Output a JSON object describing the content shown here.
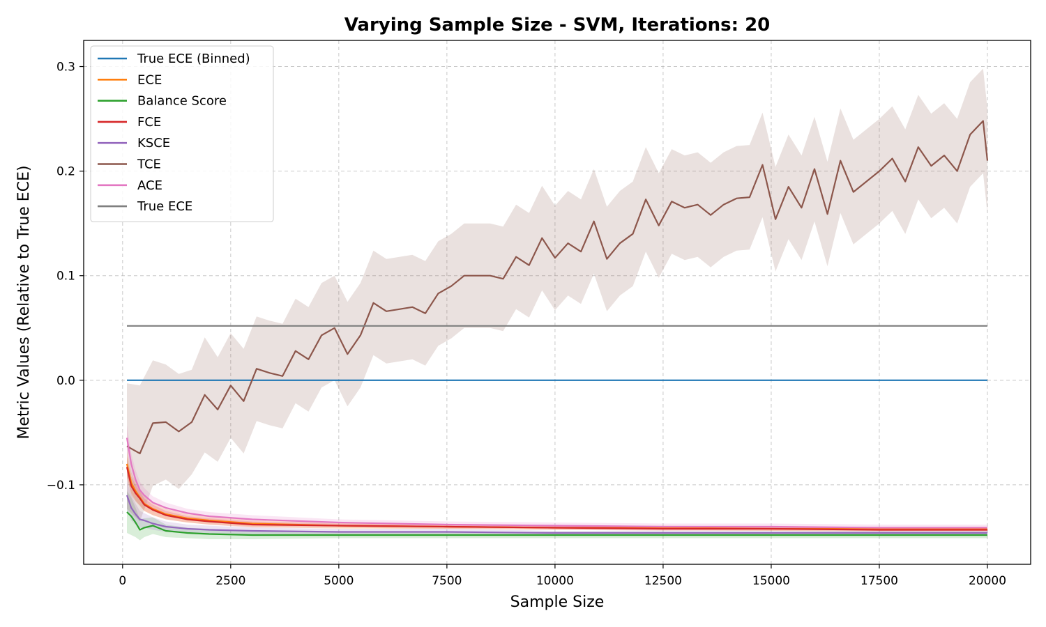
{
  "chart_data": {
    "type": "line",
    "title": "Varying Sample Size - SVM, Iterations: 20",
    "xlabel": "Sample Size",
    "ylabel": "Metric Values (Relative to True ECE)",
    "xlim": [
      -900,
      21000
    ],
    "ylim": [
      -0.176,
      0.325
    ],
    "xticks": [
      0,
      2500,
      5000,
      7500,
      10000,
      12500,
      15000,
      17500,
      20000
    ],
    "xtick_labels": [
      "0",
      "2500",
      "5000",
      "7500",
      "10000",
      "12500",
      "15000",
      "17500",
      "20000"
    ],
    "yticks": [
      -0.1,
      0.0,
      0.1,
      0.2,
      0.3
    ],
    "ytick_labels": [
      "−0.1",
      "0.0",
      "0.1",
      "0.2",
      "0.3"
    ],
    "grid": true,
    "legend_position": "top-left",
    "legend": [
      "True ECE (Binned)",
      "ECE",
      "Balance Score",
      "FCE",
      "KSCE",
      "TCE",
      "ACE",
      "True ECE"
    ],
    "series": [
      {
        "name": "True ECE (Binned)",
        "color": "#1f77b4",
        "x": [
          100,
          20000
        ],
        "y": [
          0.0,
          0.0
        ]
      },
      {
        "name": "ECE",
        "color": "#ff7f0e",
        "x": [
          100,
          200,
          300,
          400,
          500,
          700,
          1000,
          1500,
          2000,
          3000,
          5000,
          7500,
          10000,
          12500,
          15000,
          17500,
          20000
        ],
        "y": [
          -0.08,
          -0.098,
          -0.106,
          -0.112,
          -0.118,
          -0.123,
          -0.128,
          -0.132,
          -0.134,
          -0.137,
          -0.139,
          -0.14,
          -0.141,
          -0.141,
          -0.142,
          -0.142,
          -0.142
        ],
        "band": [
          0.012,
          0.01,
          0.009,
          0.008,
          0.007,
          0.006,
          0.005,
          0.004,
          0.004,
          0.003,
          0.003,
          0.002,
          0.002,
          0.002,
          0.002,
          0.002,
          0.002
        ]
      },
      {
        "name": "Balance Score",
        "color": "#2ca02c",
        "x": [
          100,
          200,
          300,
          400,
          500,
          700,
          1000,
          1500,
          2000,
          3000,
          5000,
          7500,
          10000,
          12500,
          15000,
          17500,
          20000
        ],
        "y": [
          -0.126,
          -0.13,
          -0.136,
          -0.143,
          -0.141,
          -0.139,
          -0.144,
          -0.146,
          -0.147,
          -0.148,
          -0.148,
          -0.148,
          -0.148,
          -0.148,
          -0.148,
          -0.148,
          -0.148
        ],
        "band": [
          0.02,
          0.018,
          0.014,
          0.01,
          0.009,
          0.008,
          0.006,
          0.005,
          0.005,
          0.004,
          0.003,
          0.003,
          0.003,
          0.003,
          0.003,
          0.003,
          0.003
        ]
      },
      {
        "name": "FCE",
        "color": "#d62728",
        "x": [
          100,
          200,
          300,
          400,
          500,
          700,
          1000,
          1500,
          2000,
          3000,
          5000,
          7500,
          10000,
          12500,
          15000,
          17500,
          20000
        ],
        "y": [
          -0.083,
          -0.101,
          -0.108,
          -0.113,
          -0.119,
          -0.124,
          -0.129,
          -0.133,
          -0.135,
          -0.138,
          -0.139,
          -0.14,
          -0.141,
          -0.142,
          -0.142,
          -0.143,
          -0.143
        ],
        "band": [
          0.01,
          0.009,
          0.008,
          0.007,
          0.006,
          0.005,
          0.004,
          0.003,
          0.003,
          0.003,
          0.002,
          0.002,
          0.002,
          0.002,
          0.002,
          0.002,
          0.002
        ]
      },
      {
        "name": "KSCE",
        "color": "#9467bd",
        "x": [
          100,
          200,
          300,
          400,
          500,
          700,
          1000,
          1500,
          2000,
          3000,
          5000,
          7500,
          10000,
          12500,
          15000,
          17500,
          20000
        ],
        "y": [
          -0.11,
          -0.122,
          -0.128,
          -0.133,
          -0.134,
          -0.137,
          -0.14,
          -0.142,
          -0.143,
          -0.144,
          -0.145,
          -0.145,
          -0.146,
          -0.146,
          -0.146,
          -0.146,
          -0.146
        ],
        "band": [
          0.014,
          0.012,
          0.01,
          0.008,
          0.007,
          0.006,
          0.005,
          0.004,
          0.004,
          0.003,
          0.003,
          0.003,
          0.002,
          0.002,
          0.002,
          0.002,
          0.002
        ]
      },
      {
        "name": "TCE",
        "color": "#8c564b",
        "x": [
          100,
          400,
          700,
          1000,
          1300,
          1600,
          1900,
          2200,
          2500,
          2800,
          3100,
          3400,
          3700,
          4000,
          4300,
          4600,
          4900,
          5200,
          5500,
          5800,
          6100,
          6400,
          6700,
          7000,
          7300,
          7600,
          7900,
          8200,
          8500,
          8800,
          9100,
          9400,
          9700,
          10000,
          10300,
          10600,
          10900,
          11200,
          11500,
          11800,
          12100,
          12400,
          12700,
          13000,
          13300,
          13600,
          13900,
          14200,
          14500,
          14800,
          15100,
          15400,
          15700,
          16000,
          16300,
          16600,
          16900,
          17200,
          17500,
          17800,
          18100,
          18400,
          18700,
          19000,
          19300,
          19600,
          19900,
          20000
        ],
        "y": [
          -0.063,
          -0.07,
          -0.041,
          -0.04,
          -0.049,
          -0.04,
          -0.014,
          -0.028,
          -0.005,
          -0.02,
          0.011,
          0.007,
          0.004,
          0.028,
          0.02,
          0.043,
          0.05,
          0.025,
          0.043,
          0.074,
          0.066,
          0.068,
          0.07,
          0.064,
          0.083,
          0.09,
          0.1,
          0.1,
          0.1,
          0.097,
          0.118,
          0.11,
          0.136,
          0.117,
          0.131,
          0.123,
          0.152,
          0.116,
          0.131,
          0.14,
          0.173,
          0.148,
          0.171,
          0.165,
          0.168,
          0.158,
          0.168,
          0.174,
          0.175,
          0.206,
          0.154,
          0.185,
          0.165,
          0.202,
          0.159,
          0.21,
          0.18,
          0.19,
          0.2,
          0.212,
          0.19,
          0.223,
          0.205,
          0.215,
          0.2,
          0.235,
          0.248,
          0.21
        ],
        "band": [
          0.06,
          0.065,
          0.06,
          0.055,
          0.055,
          0.05,
          0.055,
          0.05,
          0.05,
          0.05,
          0.05,
          0.05,
          0.05,
          0.05,
          0.05,
          0.05,
          0.05,
          0.05,
          0.05,
          0.05,
          0.05,
          0.05,
          0.05,
          0.05,
          0.05,
          0.05,
          0.05,
          0.05,
          0.05,
          0.05,
          0.05,
          0.05,
          0.05,
          0.05,
          0.05,
          0.05,
          0.05,
          0.05,
          0.05,
          0.05,
          0.05,
          0.05,
          0.05,
          0.05,
          0.05,
          0.05,
          0.05,
          0.05,
          0.05,
          0.05,
          0.05,
          0.05,
          0.05,
          0.05,
          0.05,
          0.05,
          0.05,
          0.05,
          0.05,
          0.05,
          0.05,
          0.05,
          0.05,
          0.05,
          0.05,
          0.05,
          0.05,
          0.05
        ]
      },
      {
        "name": "ACE",
        "color": "#e377c2",
        "x": [
          100,
          200,
          300,
          400,
          500,
          700,
          1000,
          1500,
          2000,
          3000,
          5000,
          7500,
          10000,
          12500,
          15000,
          17500,
          20000
        ],
        "y": [
          -0.055,
          -0.08,
          -0.095,
          -0.105,
          -0.11,
          -0.117,
          -0.122,
          -0.127,
          -0.13,
          -0.133,
          -0.136,
          -0.138,
          -0.139,
          -0.14,
          -0.14,
          -0.141,
          -0.141
        ],
        "band": [
          0.012,
          0.01,
          0.009,
          0.008,
          0.007,
          0.006,
          0.005,
          0.004,
          0.004,
          0.004,
          0.003,
          0.003,
          0.003,
          0.003,
          0.003,
          0.003,
          0.003
        ]
      },
      {
        "name": "True ECE",
        "color": "#7f7f7f",
        "x": [
          100,
          20000
        ],
        "y": [
          0.052,
          0.052
        ]
      }
    ]
  }
}
